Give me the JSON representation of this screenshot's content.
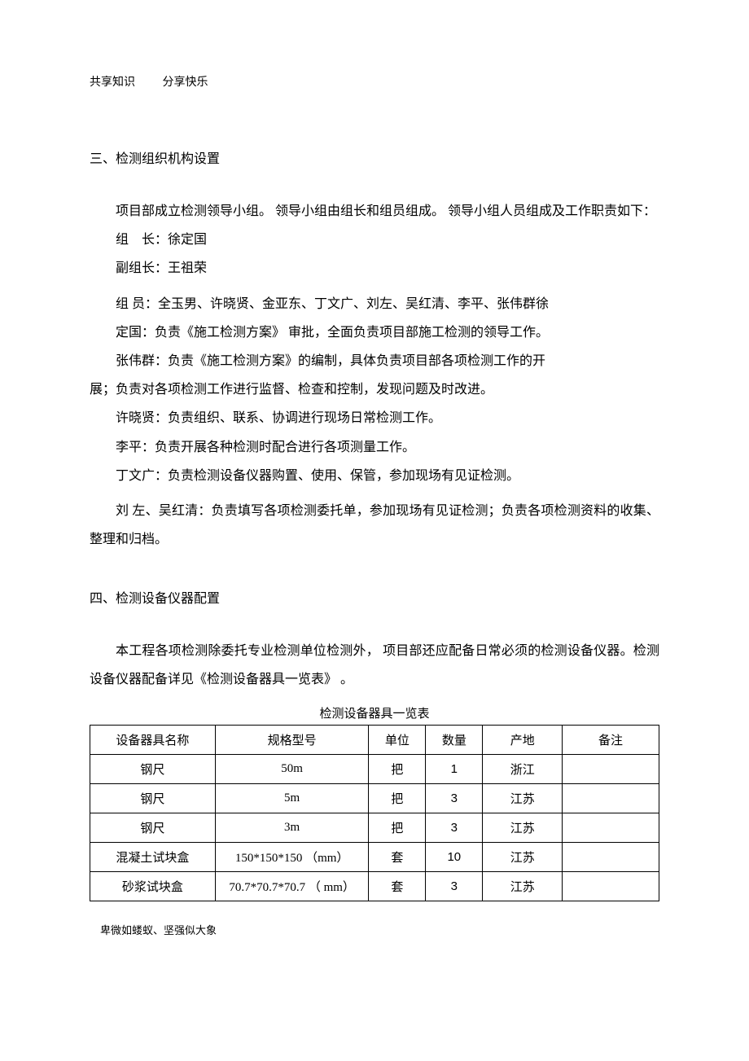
{
  "header": {
    "left": "共享知识",
    "right": "分享快乐"
  },
  "section3": {
    "heading": "三、检测组织机构设置",
    "para1": "项目部成立检测领导小组。 领导小组由组长和组员组成。 领导小组人员组成及工作职责如下：",
    "leader": "组　长：徐定国",
    "vice": "副组长：王祖荣",
    "member1": "组 员：全玉男、许晓贤、金亚东、丁文广、刘左、吴红清、李平、张伟群徐",
    "member2": "定国：负责《施工检测方案》 审批，全面负责项目部施工检测的领导工作。",
    "member3": "张伟群：负责《施工检测方案》的编制，具体负责项目部各项检测工作的开",
    "member3b": "展；负责对各项检测工作进行监督、检查和控制，发现问题及时改进。",
    "xu": "许晓贤：负责组织、联系、协调进行现场日常检测工作。",
    "li": "李平：负责开展各种检测时配合进行各项测量工作。",
    "ding": "丁文广：负责检测设备仪器购置、使用、保管，参加现场有见证检测。",
    "liu": "刘 左、吴红清：负责填写各项检测委托单，参加现场有见证检测；负责各项检测资料的收集、整理和归档。"
  },
  "section4": {
    "heading": "四、检测设备仪器配置",
    "para1": "本工程各项检测除委托专业检测单位检测外， 项目部还应配备日常必须的检测设备仪器。检测设备仪器配备详见《检测设备器具一览表》 。",
    "tableCaption": "检测设备器具一览表",
    "columns": [
      "设备器具名称",
      "规格型号",
      "单位",
      "数量",
      "产地",
      "备注"
    ],
    "rows": [
      [
        "钢尺",
        "50m",
        "把",
        "1",
        "浙江",
        ""
      ],
      [
        "钢尺",
        "5m",
        "把",
        "3",
        "江苏",
        ""
      ],
      [
        "钢尺",
        "3m",
        "把",
        "3",
        "江苏",
        ""
      ],
      [
        "混凝土试块盒",
        "150*150*150 （mm）",
        "套",
        "10",
        "江苏",
        ""
      ],
      [
        "砂浆试块盒",
        "70.7*70.7*70.7 （ mm）",
        "套",
        "3",
        "江苏",
        ""
      ]
    ]
  },
  "footer": "卑微如蝼蚁、坚强似大象"
}
